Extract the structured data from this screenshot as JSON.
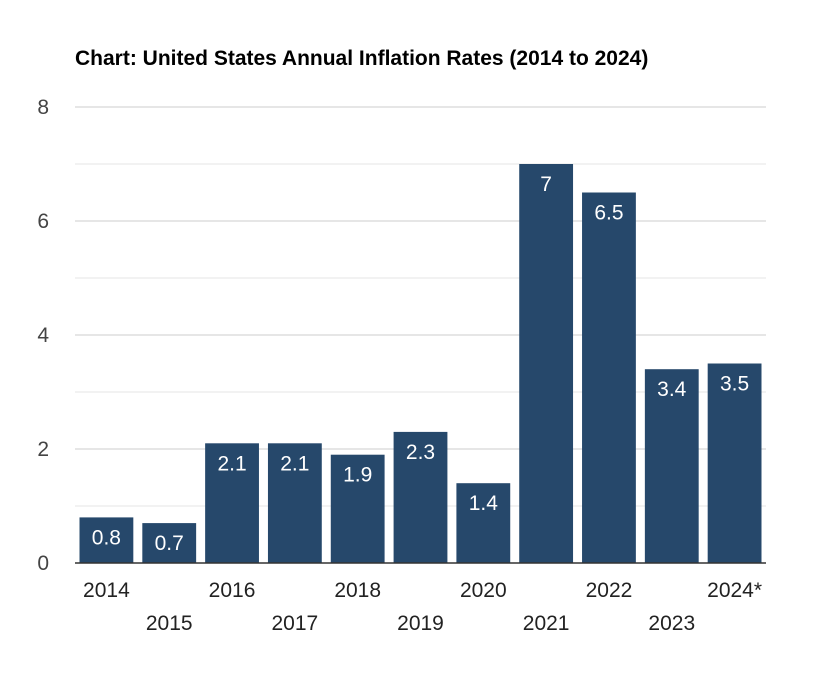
{
  "chart_data": {
    "type": "bar",
    "title": "Chart: United States Annual Inflation Rates (2014 to 2024)",
    "xlabel": "",
    "ylabel": "",
    "categories": [
      "2014",
      "2015",
      "2016",
      "2017",
      "2018",
      "2019",
      "2020",
      "2021",
      "2022",
      "2023",
      "2024*"
    ],
    "values": [
      0.8,
      0.7,
      2.1,
      2.1,
      1.9,
      2.3,
      1.4,
      7,
      6.5,
      3.4,
      3.5
    ],
    "data_labels": [
      "0.8",
      "0.7",
      "2.1",
      "2.1",
      "1.9",
      "2.3",
      "1.4",
      "7",
      "6.5",
      "3.4",
      "3.5"
    ],
    "ylim": [
      0,
      8
    ],
    "y_ticks": [
      "0",
      "2",
      "4",
      "6",
      "8"
    ],
    "grid": true,
    "legend": "none",
    "bar_color": "#26486b",
    "label_color": "#ffffff"
  }
}
